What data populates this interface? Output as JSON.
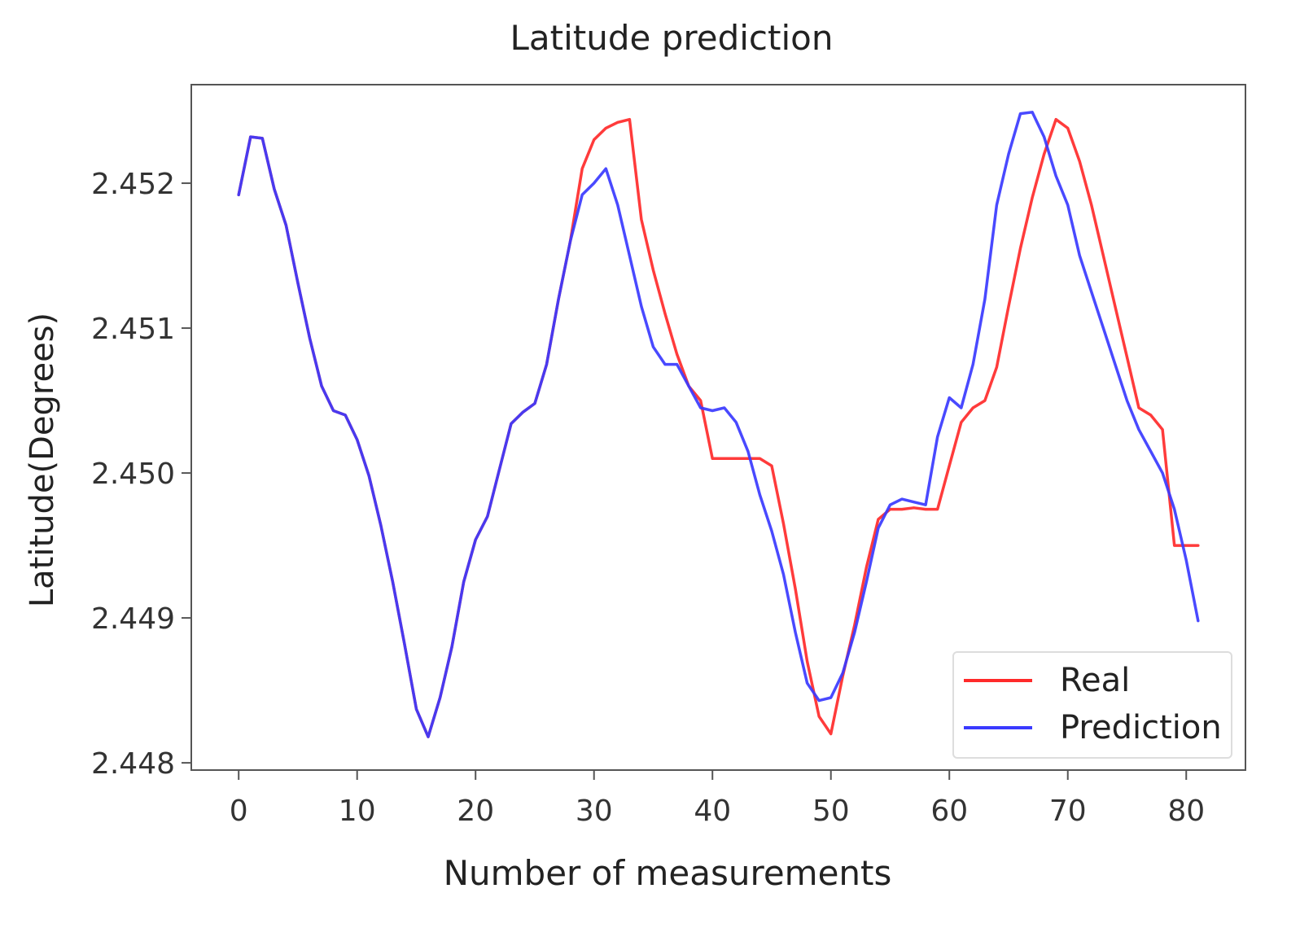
{
  "chart_data": {
    "type": "line",
    "title": "Latitude prediction",
    "xlabel": "Number of measurements",
    "ylabel": "Latitude(Degrees)",
    "xlim": [
      -4,
      85
    ],
    "ylim": [
      2.44795,
      2.45268
    ],
    "x_ticks": [
      0,
      10,
      20,
      30,
      40,
      50,
      60,
      70,
      80
    ],
    "y_ticks": [
      2.448,
      2.449,
      2.45,
      2.451,
      2.452
    ],
    "y_tick_labels": [
      "2.448",
      "2.449",
      "2.450",
      "2.451",
      "2.452"
    ],
    "legend_position": "lower right",
    "series": [
      {
        "name": "Real",
        "color": "#ff2a2a",
        "points": [
          [
            0,
            2.45192
          ],
          [
            1,
            2.45232
          ],
          [
            2,
            2.45231
          ],
          [
            3,
            2.45196
          ],
          [
            4,
            2.45171
          ],
          [
            5,
            2.45131
          ],
          [
            6,
            2.45093
          ],
          [
            7,
            2.4506
          ],
          [
            8,
            2.45043
          ],
          [
            9,
            2.4504
          ],
          [
            10,
            2.45023
          ],
          [
            11,
            2.44998
          ],
          [
            12,
            2.44964
          ],
          [
            13,
            2.44925
          ],
          [
            14,
            2.44882
          ],
          [
            15,
            2.44837
          ],
          [
            16,
            2.44818
          ],
          [
            17,
            2.44845
          ],
          [
            18,
            2.4488
          ],
          [
            19,
            2.44925
          ],
          [
            20,
            2.44954
          ],
          [
            21,
            2.4497
          ],
          [
            22,
            2.45002
          ],
          [
            23,
            2.45034
          ],
          [
            24,
            2.45042
          ],
          [
            25,
            2.45048
          ],
          [
            26,
            2.45075
          ],
          [
            27,
            2.4512
          ],
          [
            28,
            2.4516
          ],
          [
            29,
            2.4521
          ],
          [
            30,
            2.4523
          ],
          [
            31,
            2.45238
          ],
          [
            32,
            2.45242
          ],
          [
            33,
            2.45244
          ],
          [
            34,
            2.45175
          ],
          [
            35,
            2.4514
          ],
          [
            36,
            2.4511
          ],
          [
            37,
            2.45082
          ],
          [
            38,
            2.4506
          ],
          [
            39,
            2.4505
          ],
          [
            40,
            2.4501
          ],
          [
            41,
            2.4501
          ],
          [
            42,
            2.4501
          ],
          [
            43,
            2.4501
          ],
          [
            44,
            2.4501
          ],
          [
            45,
            2.45005
          ],
          [
            46,
            2.44965
          ],
          [
            47,
            2.4492
          ],
          [
            48,
            2.4487
          ],
          [
            49,
            2.44832
          ],
          [
            50,
            2.4482
          ],
          [
            51,
            2.4486
          ],
          [
            52,
            2.44895
          ],
          [
            53,
            2.44935
          ],
          [
            54,
            2.44968
          ],
          [
            55,
            2.44975
          ],
          [
            56,
            2.44975
          ],
          [
            57,
            2.44976
          ],
          [
            58,
            2.44975
          ],
          [
            59,
            2.44975
          ],
          [
            60,
            2.45005
          ],
          [
            61,
            2.45035
          ],
          [
            62,
            2.45045
          ],
          [
            63,
            2.4505
          ],
          [
            64,
            2.45073
          ],
          [
            65,
            2.45115
          ],
          [
            66,
            2.45155
          ],
          [
            67,
            2.4519
          ],
          [
            68,
            2.4522
          ],
          [
            69,
            2.45244
          ],
          [
            70,
            2.45238
          ],
          [
            71,
            2.45215
          ],
          [
            72,
            2.45185
          ],
          [
            73,
            2.4515
          ],
          [
            74,
            2.45115
          ],
          [
            75,
            2.4508
          ],
          [
            76,
            2.45045
          ],
          [
            77,
            2.4504
          ],
          [
            78,
            2.4503
          ],
          [
            79,
            2.4495
          ],
          [
            80,
            2.4495
          ],
          [
            81,
            2.4495
          ]
        ]
      },
      {
        "name": "Prediction",
        "color": "#3a3aff",
        "points": [
          [
            0,
            2.45192
          ],
          [
            1,
            2.45232
          ],
          [
            2,
            2.45231
          ],
          [
            3,
            2.45196
          ],
          [
            4,
            2.45171
          ],
          [
            5,
            2.45131
          ],
          [
            6,
            2.45093
          ],
          [
            7,
            2.4506
          ],
          [
            8,
            2.45043
          ],
          [
            9,
            2.4504
          ],
          [
            10,
            2.45023
          ],
          [
            11,
            2.44998
          ],
          [
            12,
            2.44964
          ],
          [
            13,
            2.44925
          ],
          [
            14,
            2.44882
          ],
          [
            15,
            2.44837
          ],
          [
            16,
            2.44818
          ],
          [
            17,
            2.44845
          ],
          [
            18,
            2.4488
          ],
          [
            19,
            2.44925
          ],
          [
            20,
            2.44954
          ],
          [
            21,
            2.4497
          ],
          [
            22,
            2.45002
          ],
          [
            23,
            2.45034
          ],
          [
            24,
            2.45042
          ],
          [
            25,
            2.45048
          ],
          [
            26,
            2.45075
          ],
          [
            27,
            2.4512
          ],
          [
            28,
            2.4516
          ],
          [
            29,
            2.45192
          ],
          [
            30,
            2.452
          ],
          [
            31,
            2.4521
          ],
          [
            32,
            2.45185
          ],
          [
            33,
            2.4515
          ],
          [
            34,
            2.45115
          ],
          [
            35,
            2.45087
          ],
          [
            36,
            2.45075
          ],
          [
            37,
            2.45075
          ],
          [
            38,
            2.4506
          ],
          [
            39,
            2.45045
          ],
          [
            40,
            2.45043
          ],
          [
            41,
            2.45045
          ],
          [
            42,
            2.45035
          ],
          [
            43,
            2.45015
          ],
          [
            44,
            2.44985
          ],
          [
            45,
            2.4496
          ],
          [
            46,
            2.4493
          ],
          [
            47,
            2.4489
          ],
          [
            48,
            2.44855
          ],
          [
            49,
            2.44843
          ],
          [
            50,
            2.44845
          ],
          [
            51,
            2.44862
          ],
          [
            52,
            2.4489
          ],
          [
            53,
            2.44925
          ],
          [
            54,
            2.44962
          ],
          [
            55,
            2.44978
          ],
          [
            56,
            2.44982
          ],
          [
            57,
            2.4498
          ],
          [
            58,
            2.44978
          ],
          [
            59,
            2.45025
          ],
          [
            60,
            2.45052
          ],
          [
            61,
            2.45045
          ],
          [
            62,
            2.45075
          ],
          [
            63,
            2.4512
          ],
          [
            64,
            2.45185
          ],
          [
            65,
            2.4522
          ],
          [
            66,
            2.45248
          ],
          [
            67,
            2.45249
          ],
          [
            68,
            2.45232
          ],
          [
            69,
            2.45205
          ],
          [
            70,
            2.45185
          ],
          [
            71,
            2.4515
          ],
          [
            72,
            2.45125
          ],
          [
            73,
            2.451
          ],
          [
            74,
            2.45075
          ],
          [
            75,
            2.4505
          ],
          [
            76,
            2.4503
          ],
          [
            77,
            2.45015
          ],
          [
            78,
            2.45
          ],
          [
            79,
            2.44975
          ],
          [
            80,
            2.4494
          ],
          [
            81,
            2.44898
          ]
        ]
      }
    ]
  }
}
